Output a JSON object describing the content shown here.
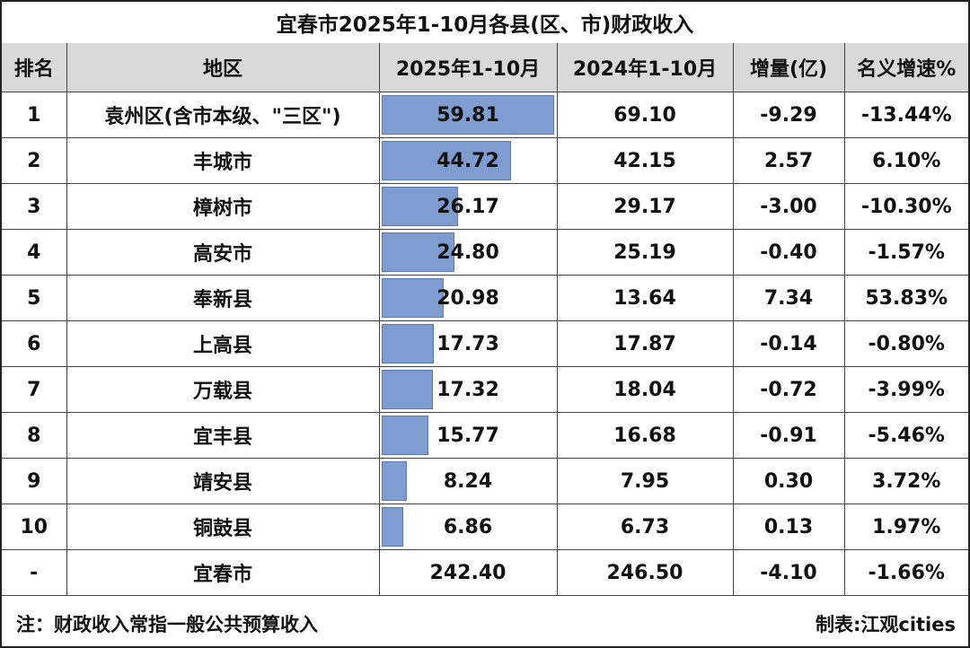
{
  "title": "宜春市2025年1-10月各县(区、市)财政收入",
  "columns": [
    "排名",
    "地区",
    "2025年1-10月",
    "2024年1-10月",
    "增量(亿)",
    "名义增速%"
  ],
  "rows": [
    {
      "rank": "1",
      "region": "袁州区(含市本级、\"三区\")",
      "y2025": "59.81",
      "y2024": "69.10",
      "delta": "-9.29",
      "growth": "-13.44%"
    },
    {
      "rank": "2",
      "region": "丰城市",
      "y2025": "44.72",
      "y2024": "42.15",
      "delta": "2.57",
      "growth": "6.10%"
    },
    {
      "rank": "3",
      "region": "樟树市",
      "y2025": "26.17",
      "y2024": "29.17",
      "delta": "-3.00",
      "growth": "-10.30%"
    },
    {
      "rank": "4",
      "region": "高安市",
      "y2025": "24.80",
      "y2024": "25.19",
      "delta": "-0.40",
      "growth": "-1.57%"
    },
    {
      "rank": "5",
      "region": "奉新县",
      "y2025": "20.98",
      "y2024": "13.64",
      "delta": "7.34",
      "growth": "53.83%"
    },
    {
      "rank": "6",
      "region": "上高县",
      "y2025": "17.73",
      "y2024": "17.87",
      "delta": "-0.14",
      "growth": "-0.80%"
    },
    {
      "rank": "7",
      "region": "万载县",
      "y2025": "17.32",
      "y2024": "18.04",
      "delta": "-0.72",
      "growth": "-3.99%"
    },
    {
      "rank": "8",
      "region": "宜丰县",
      "y2025": "15.77",
      "y2024": "16.68",
      "delta": "-0.91",
      "growth": "-5.46%"
    },
    {
      "rank": "9",
      "region": "靖安县",
      "y2025": "8.24",
      "y2024": "7.95",
      "delta": "0.30",
      "growth": "3.72%"
    },
    {
      "rank": "10",
      "region": "铜鼓县",
      "y2025": "6.86",
      "y2024": "6.73",
      "delta": "0.13",
      "growth": "1.97%"
    }
  ],
  "total": {
    "rank": "-",
    "region": "宜春市",
    "y2025": "242.40",
    "y2024": "246.50",
    "delta": "-4.10",
    "growth": "-1.66%"
  },
  "footer": {
    "note": "注：财政收入常指一般公共预算收入",
    "credit": "制表:江观cities"
  },
  "chart_data": {
    "type": "table",
    "categories": [
      "袁州区(含市本级、\"三区\")",
      "丰城市",
      "樟树市",
      "高安市",
      "奉新县",
      "上高县",
      "万载县",
      "宜丰县",
      "靖安县",
      "铜鼓县"
    ],
    "values": [
      59.81,
      44.72,
      26.17,
      24.8,
      20.98,
      17.73,
      17.32,
      15.77,
      8.24,
      6.86
    ],
    "bar_max": 59.81,
    "colors": {
      "bar": "#7f9cd0",
      "header_bg": "#d9d9d9"
    }
  }
}
